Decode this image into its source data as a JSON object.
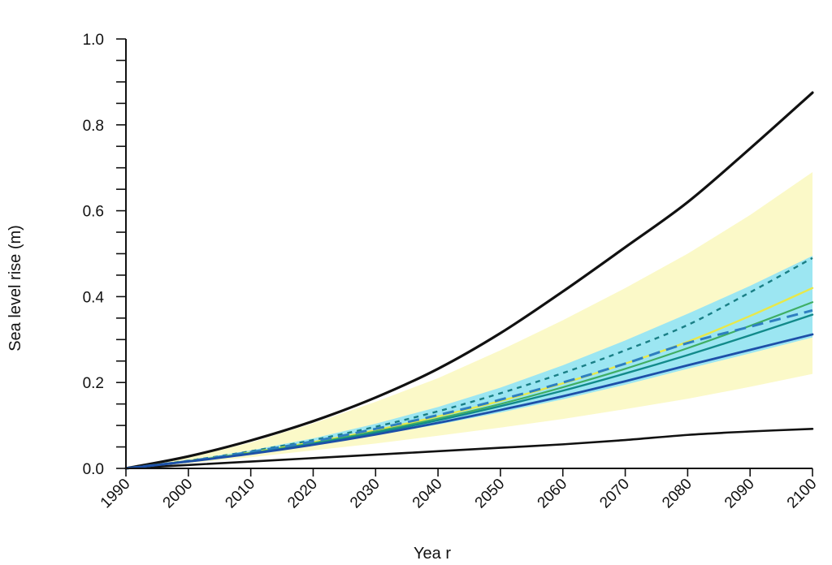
{
  "chart_data": {
    "type": "line",
    "title": "",
    "xlabel": "Yea r",
    "ylabel": "Sea level rise (m)",
    "xlim": [
      1990,
      2100
    ],
    "ylim": [
      0,
      1.0
    ],
    "x_ticks": [
      1990,
      2000,
      2010,
      2020,
      2030,
      2040,
      2050,
      2060,
      2070,
      2080,
      2090,
      2100
    ],
    "x_tick_labels": [
      "1990",
      "2000",
      "2010",
      "2020",
      "2030",
      "2040",
      "2050",
      "2060",
      "2070",
      "2080",
      "2090",
      "2100"
    ],
    "y_ticks": [
      0,
      0.2,
      0.4,
      0.6,
      0.8,
      1.0
    ],
    "y_tick_labels": [
      "0.0",
      "0.2",
      "0.4",
      "0.6",
      "0.8",
      "1.0"
    ],
    "y_minor_step": 0.05,
    "grid": false,
    "legend": false,
    "x": [
      1990,
      2000,
      2010,
      2020,
      2030,
      2040,
      2050,
      2060,
      2070,
      2080,
      2090,
      2100
    ],
    "bands": [
      {
        "color": "#fbf9c8",
        "lower": [
          0,
          0.012,
          0.026,
          0.042,
          0.058,
          0.076,
          0.095,
          0.115,
          0.138,
          0.162,
          0.19,
          0.22
        ],
        "upper": [
          0,
          0.025,
          0.06,
          0.105,
          0.155,
          0.21,
          0.275,
          0.345,
          0.42,
          0.5,
          0.59,
          0.69
        ]
      },
      {
        "color": "#9ce6f2",
        "lower": [
          0,
          0.015,
          0.033,
          0.054,
          0.077,
          0.102,
          0.13,
          0.161,
          0.195,
          0.232,
          0.268,
          0.305
        ],
        "upper": [
          0,
          0.019,
          0.042,
          0.07,
          0.104,
          0.143,
          0.188,
          0.24,
          0.298,
          0.36,
          0.425,
          0.495
        ]
      }
    ],
    "series": [
      {
        "style": "solid",
        "color": "#111111",
        "width": 3.2,
        "values": [
          0,
          0.028,
          0.065,
          0.11,
          0.165,
          0.232,
          0.315,
          0.412,
          0.515,
          0.62,
          0.745,
          0.875
        ]
      },
      {
        "style": "solid",
        "color": "#111111",
        "width": 2.6,
        "values": [
          0,
          0.008,
          0.016,
          0.024,
          0.032,
          0.04,
          0.048,
          0.056,
          0.066,
          0.078,
          0.086,
          0.092
        ]
      },
      {
        "style": "dotted",
        "color": "#1a7f86",
        "width": 2.4,
        "values": [
          0,
          0.018,
          0.04,
          0.066,
          0.097,
          0.133,
          0.175,
          0.222,
          0.275,
          0.334,
          0.41,
          0.49
        ]
      },
      {
        "style": "solid",
        "color": "#e8e84a",
        "width": 2.4,
        "values": [
          0,
          0.017,
          0.037,
          0.061,
          0.089,
          0.121,
          0.157,
          0.198,
          0.244,
          0.295,
          0.355,
          0.42
        ]
      },
      {
        "style": "solid",
        "color": "#3fae64",
        "width": 2.2,
        "values": [
          0,
          0.017,
          0.036,
          0.059,
          0.086,
          0.116,
          0.15,
          0.189,
          0.232,
          0.28,
          0.332,
          0.387
        ]
      },
      {
        "style": "dashed",
        "color": "#2e7fc0",
        "width": 3.0,
        "values": [
          0,
          0.017,
          0.038,
          0.063,
          0.092,
          0.124,
          0.16,
          0.2,
          0.244,
          0.292,
          0.33,
          0.368
        ]
      },
      {
        "style": "solid",
        "color": "#128a8a",
        "width": 2.4,
        "values": [
          0,
          0.016,
          0.035,
          0.057,
          0.083,
          0.112,
          0.145,
          0.181,
          0.221,
          0.264,
          0.31,
          0.358
        ]
      },
      {
        "style": "solid",
        "color": "#1d4fa8",
        "width": 2.8,
        "values": [
          0,
          0.016,
          0.034,
          0.055,
          0.079,
          0.106,
          0.136,
          0.168,
          0.203,
          0.24,
          0.276,
          0.312
        ]
      }
    ]
  }
}
